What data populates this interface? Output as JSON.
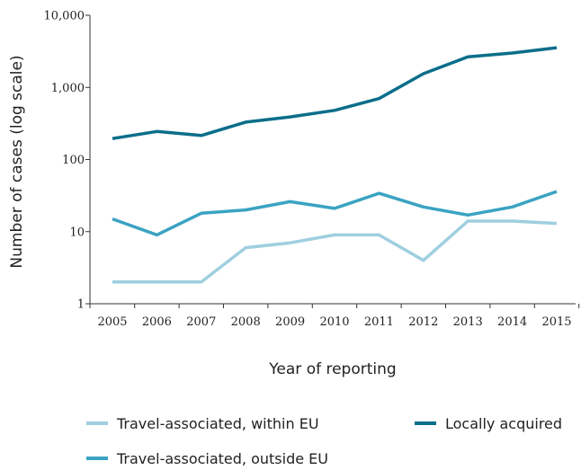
{
  "chart_data": {
    "type": "line",
    "title": "",
    "xlabel": "Year of reporting",
    "ylabel": "Number of cases (log scale)",
    "yscale": "log",
    "ylim": [
      1,
      10000
    ],
    "yticks": [
      "1",
      "10",
      "100",
      "1,000",
      "10,000"
    ],
    "ytick_values": [
      1,
      10,
      100,
      1000,
      10000
    ],
    "categories": [
      "2005",
      "2006",
      "2007",
      "2008",
      "2009",
      "2010",
      "2011",
      "2012",
      "2013",
      "2014",
      "2015"
    ],
    "grid": false,
    "legend_position": "bottom",
    "series": [
      {
        "name": "Travel-associated, within EU",
        "color": "#9fcfdf",
        "values": [
          2,
          2,
          2,
          6,
          7,
          9,
          9,
          4,
          14,
          14,
          13
        ]
      },
      {
        "name": "Locally acquired",
        "color": "#0b6e8a",
        "values": [
          195,
          245,
          215,
          330,
          390,
          480,
          700,
          1550,
          2650,
          3000,
          3550
        ]
      },
      {
        "name": "Travel-associated, outside EU",
        "color": "#3aa3c2",
        "values": [
          15,
          9,
          18,
          20,
          26,
          21,
          34,
          22,
          17,
          22,
          36
        ]
      }
    ]
  }
}
